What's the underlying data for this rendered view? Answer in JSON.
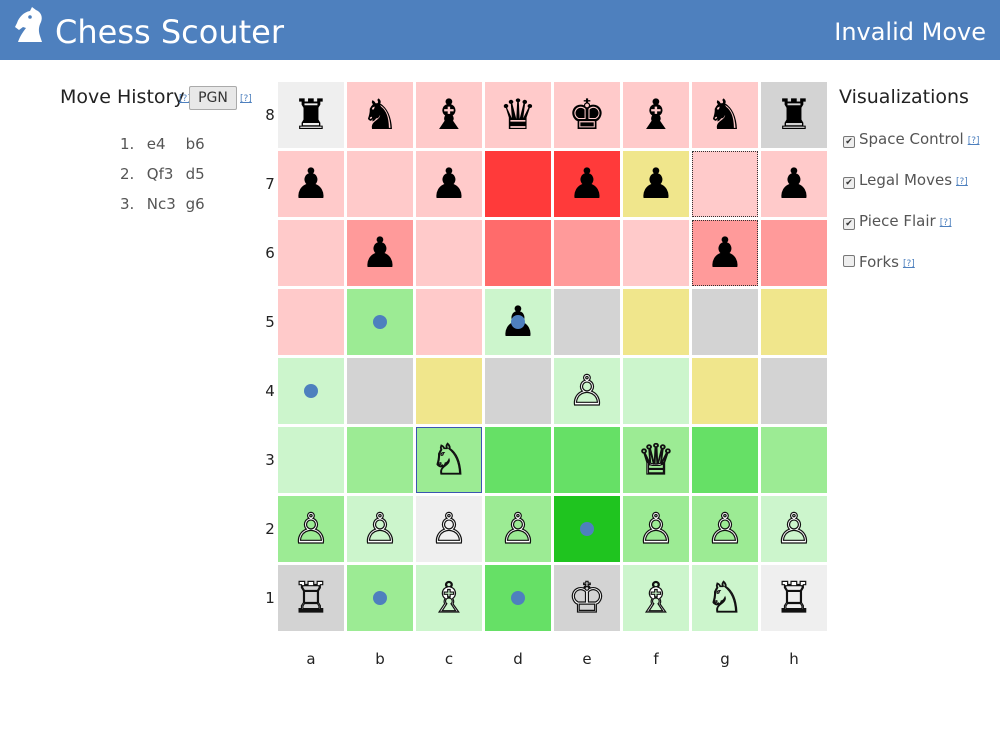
{
  "header": {
    "title": "Chess Scouter",
    "status": "Invalid Move",
    "logo_icon": "knight-logo-icon"
  },
  "move_history": {
    "title": "Move History",
    "help": "[?]",
    "pgn_label": "PGN",
    "moves": [
      {
        "num": "1.",
        "white": "e4",
        "black": "b6"
      },
      {
        "num": "2.",
        "white": "Qf3",
        "black": "d5"
      },
      {
        "num": "3.",
        "white": "Nc3",
        "black": "g6"
      }
    ]
  },
  "board": {
    "ranks": [
      "8",
      "7",
      "6",
      "5",
      "4",
      "3",
      "2",
      "1"
    ],
    "files": [
      "a",
      "b",
      "c",
      "d",
      "e",
      "f",
      "g",
      "h"
    ],
    "squares": [
      [
        {
          "bg": "#efefef",
          "piece": "♜",
          "color": "b"
        },
        {
          "bg": "#ffcaca",
          "piece": "♞",
          "color": "b"
        },
        {
          "bg": "#ffcaca",
          "piece": "♝",
          "color": "b"
        },
        {
          "bg": "#ffcaca",
          "piece": "♛",
          "color": "b"
        },
        {
          "bg": "#ffcaca",
          "piece": "♚",
          "color": "b"
        },
        {
          "bg": "#ffcaca",
          "piece": "♝",
          "color": "b"
        },
        {
          "bg": "#ffcaca",
          "piece": "♞",
          "color": "b"
        },
        {
          "bg": "#d3d3d3",
          "piece": "♜",
          "color": "b"
        }
      ],
      [
        {
          "bg": "#ffcaca",
          "piece": "♟",
          "color": "b"
        },
        {
          "bg": "#ffcaca"
        },
        {
          "bg": "#ffcaca",
          "piece": "♟",
          "color": "b"
        },
        {
          "bg": "#ff3a3a"
        },
        {
          "bg": "#ff3a3a",
          "piece": "♟",
          "color": "b"
        },
        {
          "bg": "#f0e68c",
          "piece": "♟",
          "color": "b"
        },
        {
          "bg": "#ffcaca",
          "dotted": true
        },
        {
          "bg": "#ffcaca",
          "piece": "♟",
          "color": "b"
        }
      ],
      [
        {
          "bg": "#ffcaca"
        },
        {
          "bg": "#ff9a9a",
          "piece": "♟",
          "color": "b"
        },
        {
          "bg": "#ffcaca"
        },
        {
          "bg": "#ff6b6b"
        },
        {
          "bg": "#ff9a9a"
        },
        {
          "bg": "#ffcaca"
        },
        {
          "bg": "#ff9a9a",
          "piece": "♟",
          "color": "b",
          "dotted": true
        },
        {
          "bg": "#ff9a9a"
        }
      ],
      [
        {
          "bg": "#ffcaca"
        },
        {
          "bg": "#9ceb94",
          "dot": true
        },
        {
          "bg": "#ffcaca"
        },
        {
          "bg": "#ccf5cc",
          "piece": "♟",
          "color": "b",
          "dot": true
        },
        {
          "bg": "#d3d3d3"
        },
        {
          "bg": "#f0e68c"
        },
        {
          "bg": "#d3d3d3"
        },
        {
          "bg": "#f0e68c"
        }
      ],
      [
        {
          "bg": "#ccf5cc",
          "dot": true
        },
        {
          "bg": "#d3d3d3"
        },
        {
          "bg": "#f0e68c"
        },
        {
          "bg": "#d3d3d3"
        },
        {
          "bg": "#ccf5cc",
          "piece": "♙",
          "color": "w"
        },
        {
          "bg": "#ccf5cc"
        },
        {
          "bg": "#f0e68c"
        },
        {
          "bg": "#d3d3d3"
        }
      ],
      [
        {
          "bg": "#ccf5cc"
        },
        {
          "bg": "#9ceb94"
        },
        {
          "bg": "#9ceb94",
          "piece": "♘",
          "color": "w",
          "selected": true
        },
        {
          "bg": "#66e066"
        },
        {
          "bg": "#66e066"
        },
        {
          "bg": "#9ceb94",
          "piece": "♕",
          "color": "w"
        },
        {
          "bg": "#66e066"
        },
        {
          "bg": "#9ceb94"
        }
      ],
      [
        {
          "bg": "#9ceb94",
          "piece": "♙",
          "color": "w"
        },
        {
          "bg": "#ccf5cc",
          "piece": "♙",
          "color": "w"
        },
        {
          "bg": "#efefef",
          "piece": "♙",
          "color": "w"
        },
        {
          "bg": "#9ceb94",
          "piece": "♙",
          "color": "w"
        },
        {
          "bg": "#1fc41f",
          "dot": true
        },
        {
          "bg": "#9ceb94",
          "piece": "♙",
          "color": "w"
        },
        {
          "bg": "#9ceb94",
          "piece": "♙",
          "color": "w"
        },
        {
          "bg": "#ccf5cc",
          "piece": "♙",
          "color": "w"
        }
      ],
      [
        {
          "bg": "#d3d3d3",
          "piece": "♖",
          "color": "w"
        },
        {
          "bg": "#9ceb94",
          "dot": true
        },
        {
          "bg": "#ccf5cc",
          "piece": "♗",
          "color": "w"
        },
        {
          "bg": "#66e066",
          "dot": true
        },
        {
          "bg": "#d3d3d3",
          "piece": "♔",
          "color": "w"
        },
        {
          "bg": "#ccf5cc",
          "piece": "♗",
          "color": "w"
        },
        {
          "bg": "#ccf5cc",
          "piece": "♘",
          "color": "w"
        },
        {
          "bg": "#efefef",
          "piece": "♖",
          "color": "w"
        }
      ]
    ]
  },
  "visualizations": {
    "title": "Visualizations",
    "help": "[?]",
    "options": [
      {
        "label": "Space Control",
        "checked": true
      },
      {
        "label": "Legal Moves",
        "checked": true
      },
      {
        "label": "Piece Flair",
        "checked": true
      },
      {
        "label": "Forks",
        "checked": false
      }
    ]
  }
}
